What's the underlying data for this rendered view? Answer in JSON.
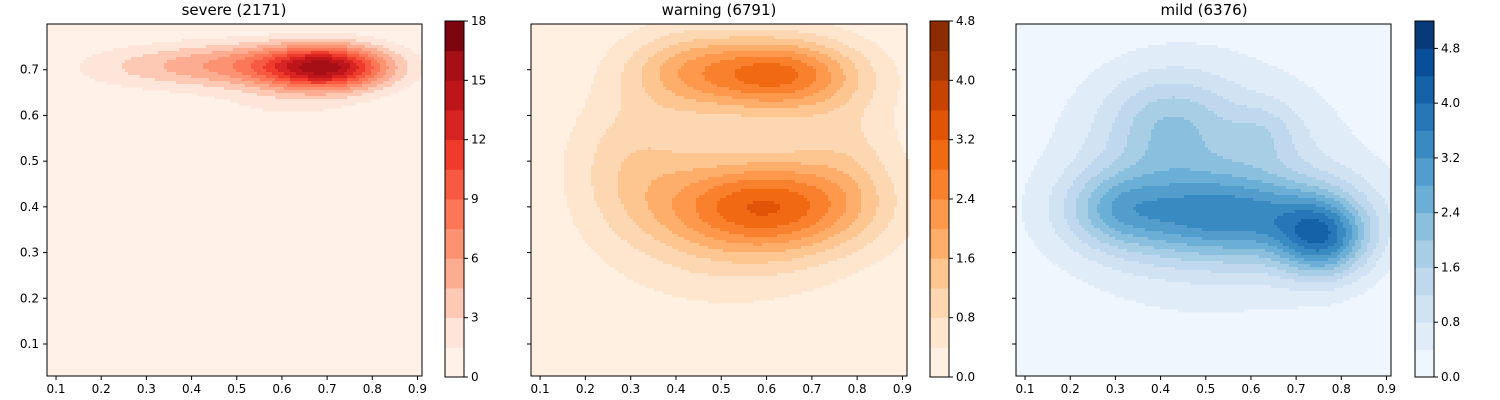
{
  "chart_data": [
    {
      "type": "contour",
      "title": "severe (2171)",
      "cmap": [
        "#fff5f0",
        "#fee5d9",
        "#fcbba1",
        "#fc9272",
        "#fb6a4a",
        "#ef3b2c",
        "#cb181d",
        "#a50f15",
        "#67000d"
      ],
      "xlim": [
        0.08,
        0.91
      ],
      "ylim": [
        0.03,
        0.8
      ],
      "x_ticks": [
        "0.1",
        "0.2",
        "0.3",
        "0.4",
        "0.5",
        "0.6",
        "0.7",
        "0.8",
        "0.9"
      ],
      "y_ticks": [
        "0.1",
        "0.2",
        "0.3",
        "0.4",
        "0.5",
        "0.6",
        "0.7"
      ],
      "levels": [
        0,
        1.5,
        3,
        4.5,
        6,
        7.5,
        9,
        10.5,
        12,
        13.5,
        15,
        16.5,
        18
      ],
      "colorbar_ticks": [
        "0",
        "3",
        "6",
        "9",
        "12",
        "15",
        "18"
      ],
      "colorbar_range": [
        0,
        18
      ],
      "density_peaks": [
        {
          "x": 0.7,
          "y": 0.705,
          "sx": 0.1,
          "sy": 0.035,
          "h": 14
        },
        {
          "x": 0.5,
          "y": 0.71,
          "sx": 0.14,
          "sy": 0.035,
          "h": 5.5
        },
        {
          "x": 0.27,
          "y": 0.705,
          "sx": 0.12,
          "sy": 0.035,
          "h": 2
        },
        {
          "x": 0.6,
          "y": 0.62,
          "sx": 0.13,
          "sy": 0.04,
          "h": 1.3
        }
      ]
    },
    {
      "type": "contour",
      "title": "warning (6791)",
      "cmap": [
        "#fff5eb",
        "#fee6ce",
        "#fdd0a2",
        "#fdae6b",
        "#fd8d3c",
        "#f16913",
        "#d94801",
        "#a63603",
        "#7f2704"
      ],
      "xlim": [
        0.08,
        0.91
      ],
      "ylim": [
        0.03,
        0.8
      ],
      "x_ticks": [
        "0.1",
        "0.2",
        "0.3",
        "0.4",
        "0.5",
        "0.6",
        "0.7",
        "0.8",
        "0.9"
      ],
      "y_ticks": [
        "0.1",
        "0.2",
        "0.3",
        "0.4",
        "0.5",
        "0.6",
        "0.7"
      ],
      "levels": [
        0,
        0.4,
        0.8,
        1.2,
        1.6,
        2.0,
        2.4,
        2.8,
        3.2,
        3.6,
        4.0,
        4.4,
        4.8
      ],
      "colorbar_ticks": [
        "0.0",
        "0.8",
        "1.6",
        "2.4",
        "3.2",
        "4.0",
        "4.8"
      ],
      "colorbar_range": [
        0,
        4.8
      ],
      "density_peaks": [
        {
          "x": 0.63,
          "y": 0.69,
          "sx": 0.12,
          "sy": 0.055,
          "h": 2.5
        },
        {
          "x": 0.42,
          "y": 0.7,
          "sx": 0.1,
          "sy": 0.06,
          "h": 1.2
        },
        {
          "x": 0.6,
          "y": 0.4,
          "sx": 0.16,
          "sy": 0.07,
          "h": 2.6
        },
        {
          "x": 0.3,
          "y": 0.5,
          "sx": 0.1,
          "sy": 0.1,
          "h": 0.8
        },
        {
          "x": 0.78,
          "y": 0.52,
          "sx": 0.08,
          "sy": 0.1,
          "h": 0.5
        },
        {
          "x": 0.5,
          "y": 0.3,
          "sx": 0.2,
          "sy": 0.1,
          "h": 0.5
        },
        {
          "x": 0.55,
          "y": 0.55,
          "sx": 0.22,
          "sy": 0.2,
          "h": 0.5
        }
      ]
    },
    {
      "type": "contour",
      "title": "mild (6376)",
      "cmap": [
        "#f7fbff",
        "#deebf7",
        "#c6dbef",
        "#9ecae1",
        "#6baed6",
        "#4292c6",
        "#2171b5",
        "#08519c",
        "#08306b"
      ],
      "xlim": [
        0.08,
        0.91
      ],
      "ylim": [
        0.03,
        0.8
      ],
      "x_ticks": [
        "0.1",
        "0.2",
        "0.3",
        "0.4",
        "0.5",
        "0.6",
        "0.7",
        "0.8",
        "0.9"
      ],
      "y_ticks": [
        "0.1",
        "0.2",
        "0.3",
        "0.4",
        "0.5",
        "0.6",
        "0.7"
      ],
      "levels": [
        0,
        0.4,
        0.8,
        1.2,
        1.6,
        2.0,
        2.4,
        2.8,
        3.2,
        3.6,
        4.0,
        4.4,
        4.8,
        5.2
      ],
      "colorbar_ticks": [
        "0.0",
        "0.8",
        "1.6",
        "2.4",
        "3.2",
        "4.0",
        "4.8"
      ],
      "colorbar_range": [
        0,
        5.2
      ],
      "density_peaks": [
        {
          "x": 0.76,
          "y": 0.33,
          "sx": 0.07,
          "sy": 0.06,
          "h": 2.6
        },
        {
          "x": 0.55,
          "y": 0.38,
          "sx": 0.18,
          "sy": 0.07,
          "h": 2.6
        },
        {
          "x": 0.3,
          "y": 0.4,
          "sx": 0.08,
          "sy": 0.06,
          "h": 1.2
        },
        {
          "x": 0.42,
          "y": 0.58,
          "sx": 0.1,
          "sy": 0.08,
          "h": 1.3
        },
        {
          "x": 0.63,
          "y": 0.56,
          "sx": 0.06,
          "sy": 0.05,
          "h": 0.7
        },
        {
          "x": 0.5,
          "y": 0.45,
          "sx": 0.25,
          "sy": 0.2,
          "h": 1.0
        }
      ]
    }
  ]
}
